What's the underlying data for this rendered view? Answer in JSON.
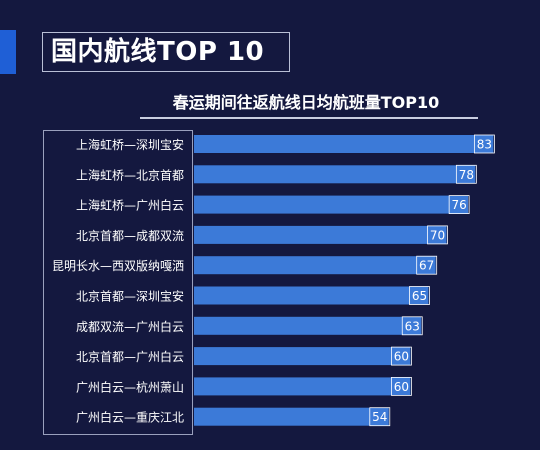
{
  "header": {
    "title": "国内航线TOP 10"
  },
  "colors": {
    "background": "#14183f",
    "bar": "#3c7ad8",
    "accent": "#1f5fd6"
  },
  "chart_data": {
    "type": "bar",
    "orientation": "horizontal",
    "title": "春运期间往返航线日均航班量TOP10",
    "categories": [
      "上海虹桥—深圳宝安",
      "上海虹桥—北京首都",
      "上海虹桥—广州白云",
      "北京首都—成都双流",
      "昆明长水—西双版纳嘎洒",
      "北京首都—深圳宝安",
      "成都双流—广州白云",
      "北京首都—广州白云",
      "广州白云—杭州萧山",
      "广州白云—重庆江北"
    ],
    "values": [
      83,
      78,
      76,
      70,
      67,
      65,
      63,
      60,
      60,
      54
    ],
    "xlim": [
      0,
      84
    ],
    "grid": false,
    "legend": "none"
  }
}
